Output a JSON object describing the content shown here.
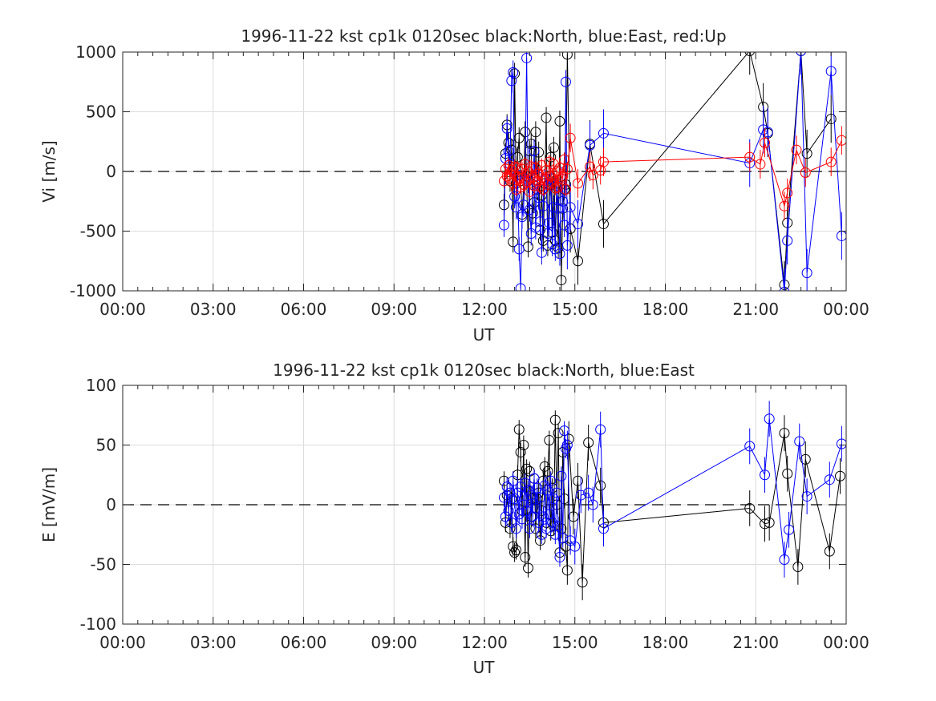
{
  "chart_data": [
    {
      "type": "scatter",
      "title": "1996-11-22 kst cp1k 0120sec black:North, blue:East, red:Up",
      "xlabel": "UT",
      "ylabel": "Vi [m/s]",
      "xlim": [
        0,
        24
      ],
      "ylim": [
        -1000,
        1000
      ],
      "x_ticks": [
        0,
        3,
        6,
        9,
        12,
        15,
        18,
        21,
        24
      ],
      "x_tick_labels": [
        "00:00",
        "03:00",
        "06:00",
        "09:00",
        "12:00",
        "15:00",
        "18:00",
        "21:00",
        "00:00"
      ],
      "y_ticks": [
        -1000,
        -500,
        0,
        500,
        1000
      ],
      "y_tick_labels": [
        "-1000",
        "-500",
        "0",
        "500",
        "1000"
      ],
      "grid": true,
      "zero_line": "dashed",
      "series": [
        {
          "color": "#000000",
          "x": [
            12.65,
            12.7,
            12.75,
            12.8,
            12.85,
            12.9,
            12.95,
            13.0,
            13.05,
            13.1,
            13.15,
            13.2,
            13.25,
            13.3,
            13.35,
            13.4,
            13.45,
            13.5,
            13.55,
            13.6,
            13.65,
            13.7,
            13.75,
            13.8,
            13.85,
            13.9,
            13.95,
            14.0,
            14.05,
            14.1,
            14.15,
            14.2,
            14.25,
            14.3,
            14.35,
            14.4,
            14.45,
            14.5,
            14.55,
            14.6,
            14.65,
            14.7,
            14.75,
            14.85,
            15.1,
            15.5,
            15.95,
            20.8,
            21.25,
            21.4,
            21.95,
            22.05,
            22.5,
            22.7,
            23.5
          ],
          "y": [
            -280,
            150,
            390,
            240,
            -80,
            180,
            -590,
            820,
            -100,
            120,
            280,
            -80,
            -360,
            -110,
            330,
            -40,
            -630,
            170,
            230,
            -350,
            -260,
            330,
            -150,
            160,
            -490,
            -200,
            -580,
            -100,
            450,
            -620,
            -110,
            120,
            -510,
            200,
            -580,
            -100,
            -640,
            420,
            -910,
            -310,
            -150,
            -110,
            980,
            -480,
            -750,
            230,
            -440,
            1010,
            540,
            320,
            -950,
            -430,
            1010,
            150,
            440
          ],
          "err": [
            90,
            90,
            90,
            90,
            90,
            90,
            90,
            90,
            90,
            90,
            90,
            90,
            90,
            90,
            90,
            90,
            90,
            90,
            90,
            90,
            90,
            90,
            90,
            90,
            90,
            90,
            90,
            90,
            90,
            90,
            90,
            90,
            90,
            90,
            90,
            90,
            90,
            90,
            90,
            90,
            90,
            90,
            150,
            200,
            200,
            200,
            200,
            200,
            200,
            200,
            200,
            200,
            200,
            200,
            200
          ]
        },
        {
          "color": "#0000ff",
          "x": [
            12.65,
            12.7,
            12.75,
            12.8,
            12.85,
            12.9,
            12.95,
            13.0,
            13.05,
            13.1,
            13.15,
            13.2,
            13.25,
            13.3,
            13.35,
            13.4,
            13.45,
            13.5,
            13.55,
            13.6,
            13.65,
            13.7,
            13.75,
            13.8,
            13.85,
            13.9,
            13.95,
            14.0,
            14.05,
            14.1,
            14.15,
            14.2,
            14.25,
            14.3,
            14.35,
            14.4,
            14.45,
            14.5,
            14.55,
            14.6,
            14.65,
            14.7,
            14.75,
            14.85,
            15.1,
            15.5,
            15.95,
            20.8,
            21.25,
            21.4,
            21.95,
            22.05,
            22.5,
            22.7,
            23.5,
            23.85
          ],
          "y": [
            -450,
            110,
            360,
            170,
            60,
            760,
            830,
            -210,
            -300,
            -30,
            -650,
            -980,
            -380,
            -280,
            -60,
            950,
            -80,
            -320,
            -520,
            -110,
            170,
            -470,
            -40,
            -220,
            -420,
            -680,
            -290,
            -80,
            -60,
            -520,
            -430,
            -60,
            -610,
            -300,
            -650,
            -120,
            -310,
            -690,
            -60,
            -250,
            -450,
            750,
            -620,
            -300,
            -440,
            220,
            320,
            70,
            350,
            330,
            -1010,
            -580,
            1010,
            -850,
            840,
            -540
          ],
          "err": [
            100,
            100,
            100,
            100,
            100,
            100,
            100,
            100,
            100,
            100,
            100,
            100,
            100,
            100,
            100,
            100,
            100,
            100,
            100,
            100,
            100,
            100,
            100,
            100,
            100,
            100,
            100,
            100,
            100,
            100,
            100,
            100,
            100,
            100,
            100,
            100,
            100,
            100,
            100,
            100,
            100,
            100,
            200,
            200,
            200,
            200,
            200,
            200,
            200,
            200,
            200,
            200,
            200,
            200,
            200,
            200
          ]
        },
        {
          "color": "#ff0000",
          "x": [
            12.65,
            12.7,
            12.75,
            12.8,
            12.85,
            12.9,
            12.95,
            13.0,
            13.05,
            13.1,
            13.15,
            13.2,
            13.25,
            13.3,
            13.35,
            13.4,
            13.45,
            13.5,
            13.55,
            13.6,
            13.65,
            13.7,
            13.75,
            13.8,
            13.85,
            13.9,
            13.95,
            14.0,
            14.05,
            14.1,
            14.15,
            14.2,
            14.25,
            14.3,
            14.35,
            14.4,
            14.45,
            14.5,
            14.55,
            14.6,
            14.65,
            14.7,
            14.75,
            14.85,
            15.1,
            15.5,
            15.6,
            15.85,
            15.95,
            20.8,
            21.15,
            21.3,
            21.95,
            22.05,
            22.35,
            22.65,
            23.5,
            23.85
          ],
          "y": [
            -80,
            20,
            -40,
            50,
            -60,
            10,
            -100,
            40,
            -150,
            30,
            -60,
            -130,
            20,
            -110,
            60,
            -90,
            0,
            -170,
            40,
            -50,
            -120,
            30,
            -80,
            -20,
            -130,
            50,
            -150,
            -60,
            10,
            -110,
            80,
            -40,
            -100,
            60,
            -140,
            0,
            -130,
            30,
            -60,
            -40,
            100,
            -150,
            20,
            280,
            -100,
            40,
            -30,
            10,
            80,
            120,
            60,
            240,
            -290,
            -180,
            180,
            -10,
            80,
            260
          ],
          "err": [
            60,
            60,
            60,
            60,
            60,
            60,
            60,
            60,
            60,
            60,
            60,
            60,
            60,
            60,
            60,
            60,
            60,
            60,
            60,
            60,
            60,
            60,
            60,
            60,
            60,
            60,
            60,
            60,
            60,
            60,
            60,
            60,
            60,
            60,
            60,
            60,
            60,
            60,
            60,
            60,
            60,
            60,
            60,
            120,
            120,
            120,
            120,
            120,
            120,
            120,
            120,
            120,
            120,
            120,
            120,
            120,
            120,
            120
          ]
        }
      ]
    },
    {
      "type": "scatter",
      "title": "1996-11-22 kst cp1k 0120sec black:North, blue:East",
      "xlabel": "UT",
      "ylabel": "E [mV/m]",
      "xlim": [
        0,
        24
      ],
      "ylim": [
        -100,
        100
      ],
      "x_ticks": [
        0,
        3,
        6,
        9,
        12,
        15,
        18,
        21,
        24
      ],
      "x_tick_labels": [
        "00:00",
        "03:00",
        "06:00",
        "09:00",
        "12:00",
        "15:00",
        "18:00",
        "21:00",
        "00:00"
      ],
      "y_ticks": [
        -100,
        -50,
        0,
        50,
        100
      ],
      "y_tick_labels": [
        "-100",
        "-50",
        "0",
        "50",
        "100"
      ],
      "grid": true,
      "zero_line": "dashed",
      "series": [
        {
          "color": "#000000",
          "x": [
            12.65,
            12.7,
            12.75,
            12.8,
            12.85,
            12.9,
            12.95,
            13.0,
            13.05,
            13.1,
            13.15,
            13.2,
            13.25,
            13.3,
            13.35,
            13.4,
            13.45,
            13.5,
            13.55,
            13.6,
            13.65,
            13.7,
            13.75,
            13.8,
            13.85,
            13.9,
            13.95,
            14.0,
            14.05,
            14.1,
            14.15,
            14.2,
            14.25,
            14.3,
            14.35,
            14.4,
            14.45,
            14.5,
            14.55,
            14.6,
            14.65,
            14.7,
            14.75,
            14.8,
            14.95,
            15.1,
            15.25,
            15.45,
            15.85,
            15.95,
            20.8,
            21.3,
            21.45,
            21.95,
            22.05,
            22.4,
            22.65,
            23.45,
            23.8
          ],
          "y": [
            20,
            -15,
            8,
            -5,
            -20,
            5,
            -35,
            -40,
            -38,
            25,
            63,
            44,
            -5,
            50,
            -44,
            30,
            -53,
            28,
            -10,
            5,
            22,
            -20,
            5,
            10,
            -30,
            -5,
            20,
            32,
            -15,
            28,
            54,
            -22,
            14,
            -18,
            71,
            0,
            60,
            -40,
            -20,
            44,
            5,
            -35,
            -55,
            55,
            -10,
            20,
            -65,
            52,
            16,
            -15,
            -3,
            -16,
            -15,
            60,
            26,
            -52,
            38,
            -39,
            24
          ],
          "err": [
            8,
            8,
            8,
            8,
            8,
            8,
            8,
            8,
            8,
            8,
            8,
            8,
            8,
            8,
            8,
            8,
            8,
            8,
            8,
            8,
            8,
            8,
            8,
            8,
            8,
            8,
            8,
            8,
            8,
            8,
            8,
            8,
            8,
            8,
            8,
            8,
            8,
            8,
            8,
            8,
            8,
            8,
            12,
            15,
            15,
            15,
            15,
            15,
            15,
            15,
            15,
            15,
            15,
            15,
            15,
            15,
            15,
            15,
            15
          ]
        },
        {
          "color": "#0000ff",
          "x": [
            12.65,
            12.7,
            12.75,
            12.8,
            12.85,
            12.9,
            12.95,
            13.0,
            13.05,
            13.1,
            13.15,
            13.2,
            13.25,
            13.3,
            13.35,
            13.4,
            13.45,
            13.5,
            13.55,
            13.6,
            13.65,
            13.7,
            13.75,
            13.8,
            13.85,
            13.9,
            13.95,
            14.0,
            14.05,
            14.1,
            14.15,
            14.2,
            14.25,
            14.3,
            14.35,
            14.4,
            14.45,
            14.5,
            14.55,
            14.6,
            14.65,
            14.7,
            14.75,
            14.85,
            15.0,
            15.2,
            15.45,
            15.6,
            15.85,
            15.95,
            20.8,
            21.3,
            21.45,
            21.95,
            22.1,
            22.45,
            22.7,
            23.45,
            23.85
          ],
          "y": [
            6,
            -10,
            15,
            -5,
            10,
            -15,
            20,
            5,
            -20,
            10,
            -8,
            15,
            -12,
            0,
            18,
            -5,
            12,
            -20,
            8,
            -10,
            22,
            -3,
            14,
            -15,
            6,
            -25,
            -10,
            16,
            -20,
            12,
            -8,
            20,
            -15,
            5,
            -25,
            10,
            -18,
            -44,
            24,
            -28,
            62,
            47,
            50,
            -30,
            -35,
            8,
            10,
            0,
            63,
            -20,
            49,
            25,
            72,
            -46,
            -21,
            53,
            7,
            21,
            51
          ],
          "err": [
            8,
            8,
            8,
            8,
            8,
            8,
            8,
            8,
            8,
            8,
            8,
            8,
            8,
            8,
            8,
            8,
            8,
            8,
            8,
            8,
            8,
            8,
            8,
            8,
            8,
            8,
            8,
            8,
            8,
            8,
            8,
            8,
            8,
            8,
            8,
            8,
            8,
            8,
            8,
            8,
            8,
            8,
            12,
            12,
            15,
            15,
            15,
            15,
            15,
            15,
            15,
            15,
            15,
            15,
            15,
            15,
            15,
            15,
            15
          ]
        }
      ]
    }
  ]
}
